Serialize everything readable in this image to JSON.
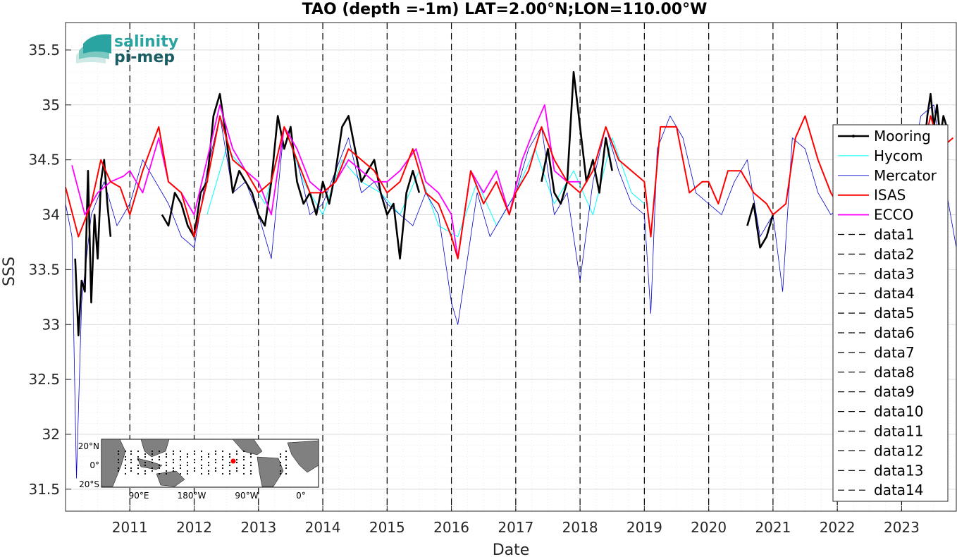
{
  "chart_data": {
    "type": "line",
    "title": "TAO (depth =-1m) LAT=2.00°N;LON=110.00°W",
    "xlabel": "Date",
    "ylabel": "SSS",
    "xlim": [
      2010.0,
      2023.85
    ],
    "ylim": [
      31.3,
      35.75
    ],
    "grid": "on (minor dotted)",
    "legend_position": "right",
    "x_ticks": [
      "2011",
      "2012",
      "2013",
      "2014",
      "2015",
      "2016",
      "2017",
      "2018",
      "2019",
      "2020",
      "2021",
      "2022",
      "2023"
    ],
    "y_ticks": [
      "31.5",
      "32",
      "32.5",
      "33",
      "33.5",
      "34",
      "34.5",
      "35",
      "35.5"
    ],
    "vertical_dashed_lines_at": [
      2011,
      2012,
      2013,
      2014,
      2015,
      2016,
      2017,
      2018,
      2019,
      2020,
      2021,
      2022,
      2023
    ],
    "series": [
      {
        "name": "Mooring",
        "color": "#000000",
        "segments": [
          {
            "x": [
              2010.15,
              2010.2,
              2010.25,
              2010.3,
              2010.35,
              2010.4,
              2010.45,
              2010.5,
              2010.55,
              2010.6,
              2010.65,
              2010.7
            ],
            "y": [
              33.6,
              32.9,
              33.4,
              33.3,
              34.4,
              33.2,
              34.0,
              33.6,
              34.3,
              34.5,
              34.1,
              33.8
            ]
          },
          {
            "x": [
              2011.5,
              2011.6,
              2011.7,
              2011.8,
              2011.9,
              2012.0,
              2012.1,
              2012.2,
              2012.3,
              2012.4,
              2012.5,
              2012.6,
              2012.7,
              2012.8,
              2012.9,
              2013.0,
              2013.1,
              2013.2,
              2013.3,
              2013.4,
              2013.5,
              2013.6,
              2013.7,
              2013.8,
              2013.9,
              2014.0,
              2014.1,
              2014.2,
              2014.3,
              2014.4,
              2014.5,
              2014.6,
              2014.7,
              2014.8,
              2014.9,
              2015.0,
              2015.1,
              2015.2,
              2015.3,
              2015.4,
              2015.5
            ],
            "y": [
              34.0,
              33.9,
              34.2,
              34.1,
              33.9,
              33.8,
              34.2,
              34.3,
              34.9,
              35.1,
              34.7,
              34.2,
              34.4,
              34.3,
              34.2,
              34.0,
              33.9,
              34.3,
              34.9,
              34.6,
              34.8,
              34.3,
              34.1,
              34.2,
              34.0,
              34.3,
              34.1,
              34.4,
              34.8,
              34.9,
              34.6,
              34.3,
              34.4,
              34.5,
              34.2,
              34.0,
              34.1,
              33.6,
              34.2,
              34.4,
              34.2
            ]
          },
          {
            "x": [
              2017.4,
              2017.5,
              2017.6,
              2017.7,
              2017.8,
              2017.9,
              2018.0,
              2018.1,
              2018.2,
              2018.3,
              2018.4,
              2018.5
            ],
            "y": [
              34.3,
              34.6,
              34.2,
              34.1,
              34.3,
              35.3,
              34.8,
              34.3,
              34.5,
              34.2,
              34.7,
              34.4
            ]
          },
          {
            "x": [
              2020.6,
              2020.7,
              2020.8,
              2020.9,
              2021.0
            ],
            "y": [
              33.9,
              34.1,
              33.7,
              33.8,
              34.0
            ]
          },
          {
            "x": [
              2023.35,
              2023.4,
              2023.45,
              2023.5,
              2023.55,
              2023.6,
              2023.65,
              2023.7
            ],
            "y": [
              34.6,
              34.9,
              35.1,
              34.8,
              35.0,
              34.7,
              34.9,
              34.8
            ]
          }
        ]
      },
      {
        "name": "Hycom",
        "color": "#00ffff",
        "x": [
          2012.2,
          2012.5,
          2012.8,
          2013.1,
          2013.4,
          2013.7,
          2014.0,
          2014.3,
          2014.6,
          2014.9,
          2015.2,
          2015.5,
          2015.8,
          2016.1,
          2016.4,
          2016.7,
          2017.0,
          2017.3,
          2017.6,
          2017.9,
          2018.2,
          2018.5,
          2018.8,
          2019.0
        ],
        "y": [
          34.0,
          34.6,
          34.4,
          34.1,
          34.8,
          34.3,
          34.0,
          34.5,
          34.3,
          34.2,
          34.0,
          34.4,
          33.9,
          33.8,
          34.3,
          33.9,
          34.2,
          34.6,
          34.1,
          34.4,
          34.0,
          34.7,
          34.2,
          34.1
        ]
      },
      {
        "name": "Mercator",
        "color": "#0000cc",
        "x": [
          2010.0,
          2010.1,
          2010.17,
          2010.25,
          2010.4,
          2010.6,
          2010.8,
          2011.0,
          2011.2,
          2011.4,
          2011.6,
          2011.8,
          2012.0,
          2012.2,
          2012.4,
          2012.6,
          2012.8,
          2013.0,
          2013.2,
          2013.4,
          2013.6,
          2013.8,
          2014.0,
          2014.2,
          2014.4,
          2014.6,
          2014.8,
          2015.0,
          2015.2,
          2015.4,
          2015.6,
          2015.8,
          2016.0,
          2016.1,
          2016.2,
          2016.4,
          2016.6,
          2016.8,
          2017.0,
          2017.2,
          2017.4,
          2017.6,
          2017.8,
          2018.0,
          2018.2,
          2018.4,
          2018.6,
          2018.8,
          2019.0,
          2019.1,
          2019.2,
          2019.4,
          2019.6,
          2019.8,
          2020.0,
          2020.2,
          2020.4,
          2020.6,
          2020.8,
          2021.0,
          2021.15,
          2021.3,
          2021.5,
          2021.7,
          2021.9,
          2022.1,
          2022.3,
          2022.5,
          2022.7,
          2022.9,
          2023.1,
          2023.3,
          2023.5,
          2023.7,
          2023.85
        ],
        "y": [
          34.1,
          33.8,
          31.6,
          33.2,
          34.0,
          34.3,
          33.9,
          34.1,
          34.5,
          34.3,
          34.1,
          33.8,
          33.7,
          34.4,
          34.9,
          34.2,
          34.3,
          34.0,
          33.6,
          34.8,
          34.5,
          34.0,
          34.1,
          34.4,
          34.7,
          34.2,
          34.3,
          34.1,
          34.0,
          33.9,
          34.2,
          34.0,
          33.2,
          33.0,
          33.4,
          34.2,
          33.8,
          34.0,
          34.2,
          34.6,
          34.8,
          34.0,
          34.2,
          33.4,
          34.3,
          34.8,
          34.4,
          34.1,
          34.0,
          33.1,
          34.6,
          34.9,
          34.7,
          34.2,
          34.1,
          34.0,
          34.3,
          34.5,
          33.8,
          34.0,
          33.3,
          34.7,
          34.6,
          34.2,
          34.0,
          34.1,
          34.2,
          33.9,
          34.0,
          33.8,
          34.3,
          34.9,
          35.0,
          34.2,
          33.7
        ]
      },
      {
        "name": "ISAS",
        "color": "#ff0000",
        "x": [
          2010.0,
          2010.2,
          2010.4,
          2010.55,
          2010.7,
          2010.85,
          2011.0,
          2011.2,
          2011.45,
          2011.6,
          2011.8,
          2012.0,
          2012.2,
          2012.4,
          2012.6,
          2012.8,
          2013.0,
          2013.2,
          2013.4,
          2013.6,
          2013.8,
          2014.0,
          2014.2,
          2014.4,
          2014.6,
          2014.8,
          2015.0,
          2015.2,
          2015.4,
          2015.6,
          2015.8,
          2016.0,
          2016.1,
          2016.3,
          2016.5,
          2016.7,
          2016.9,
          2017.0,
          2017.2,
          2017.4,
          2017.6,
          2017.8,
          2018.0,
          2018.2,
          2018.4,
          2018.6,
          2018.8,
          2019.0,
          2019.1,
          2019.25,
          2019.5,
          2019.7,
          2019.9,
          2020.0,
          2020.15,
          2020.3,
          2020.5,
          2020.7,
          2020.9,
          2021.0,
          2021.2,
          2021.35,
          2021.5,
          2021.7,
          2021.9,
          2022.1,
          2022.3,
          2022.5,
          2022.7,
          2022.9,
          2023.1,
          2023.3,
          2023.45,
          2023.6,
          2023.8
        ],
        "y": [
          34.25,
          33.8,
          34.1,
          34.5,
          34.3,
          34.25,
          34.0,
          34.4,
          34.8,
          34.3,
          34.2,
          33.8,
          34.3,
          34.9,
          34.5,
          34.4,
          34.2,
          34.3,
          34.8,
          34.5,
          34.2,
          34.2,
          34.3,
          34.6,
          34.5,
          34.4,
          34.2,
          34.3,
          34.6,
          34.2,
          34.1,
          33.8,
          33.6,
          34.4,
          34.1,
          34.3,
          34.0,
          34.2,
          34.4,
          34.8,
          34.5,
          34.3,
          34.2,
          34.4,
          34.8,
          34.5,
          34.4,
          34.3,
          33.8,
          34.8,
          34.8,
          34.2,
          34.3,
          34.3,
          34.1,
          34.4,
          34.4,
          34.2,
          34.1,
          34.0,
          34.1,
          34.7,
          34.9,
          34.5,
          34.2,
          34.0,
          34.2,
          34.2,
          34.3,
          34.1,
          34.2,
          34.5,
          34.9,
          34.6,
          34.7
        ]
      },
      {
        "name": "ECCO",
        "color": "#ff00ff",
        "x": [
          2010.1,
          2010.3,
          2010.5,
          2010.7,
          2010.9,
          2011.0,
          2011.2,
          2011.45,
          2011.6,
          2011.8,
          2012.0,
          2012.2,
          2012.4,
          2012.6,
          2012.8,
          2013.0,
          2013.2,
          2013.4,
          2013.6,
          2013.8,
          2014.0,
          2014.2,
          2014.4,
          2014.6,
          2014.8,
          2015.0,
          2015.2,
          2015.45,
          2015.6,
          2015.8,
          2016.0,
          2016.1,
          2016.3,
          2016.5,
          2016.7,
          2016.9,
          2017.1,
          2017.3,
          2017.45,
          2017.6,
          2017.8,
          2018.0
        ],
        "y": [
          34.45,
          34.0,
          34.2,
          34.3,
          34.35,
          34.4,
          34.2,
          34.7,
          34.3,
          34.2,
          34.0,
          34.5,
          35.0,
          34.6,
          34.4,
          34.3,
          34.0,
          34.8,
          34.6,
          34.3,
          34.2,
          34.3,
          34.5,
          34.4,
          34.3,
          34.3,
          34.4,
          34.6,
          34.3,
          34.2,
          34.0,
          33.6,
          34.4,
          34.2,
          34.4,
          34.0,
          34.5,
          34.8,
          35.0,
          34.4,
          34.3,
          34.3
        ]
      }
    ],
    "dashed_series": [
      "data1",
      "data2",
      "data3",
      "data4",
      "data5",
      "data6",
      "data7",
      "data8",
      "data9",
      "data10",
      "data11",
      "data12",
      "data13",
      "data14"
    ],
    "legend": [
      "Mooring",
      "Hycom",
      "Mercator",
      "ISAS",
      "ECCO",
      "data1",
      "data2",
      "data3",
      "data4",
      "data5",
      "data6",
      "data7",
      "data8",
      "data9",
      "data10",
      "data11",
      "data12",
      "data13",
      "data14"
    ]
  },
  "logo": {
    "line1": "salinity",
    "line2": "pi-mep"
  },
  "inset_map": {
    "lat_labels": [
      "20°N",
      "0°",
      "20°S"
    ],
    "lon_labels": [
      "90°E",
      "180°W",
      "90°W",
      "0°"
    ],
    "marker_color": "#ff0000"
  }
}
